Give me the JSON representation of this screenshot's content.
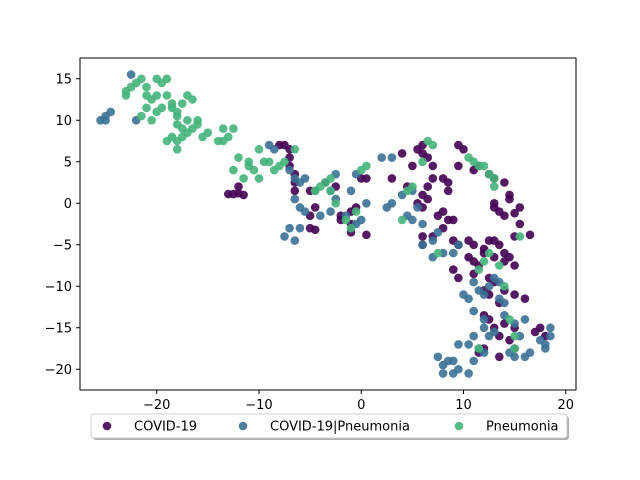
{
  "chart_data": {
    "type": "scatter",
    "title": "",
    "xlabel": "",
    "ylabel": "",
    "xlim": [
      -27.5,
      21
    ],
    "ylim": [
      -22.5,
      17.5
    ],
    "xticks": [
      -20,
      -10,
      0,
      10,
      20
    ],
    "yticks": [
      -20,
      -15,
      -10,
      -5,
      0,
      5,
      10,
      15
    ],
    "grid": false,
    "legend": {
      "placement": "bottom-center",
      "columns": 3
    },
    "series": [
      {
        "name": "COVID-19",
        "color": "#440154",
        "points": [
          [
            -13,
            1.1
          ],
          [
            -12.5,
            1.1
          ],
          [
            -12,
            1.2
          ],
          [
            -11.5,
            1
          ],
          [
            -12,
            2
          ],
          [
            -8,
            7
          ],
          [
            -7.5,
            7
          ],
          [
            -7,
            6.5
          ],
          [
            -7,
            5.5
          ],
          [
            -7,
            4.5
          ],
          [
            -6.5,
            3.5
          ],
          [
            -6.5,
            2.5
          ],
          [
            -6.5,
            1.5
          ],
          [
            -5,
            1.5
          ],
          [
            -4.5,
            -0.5
          ],
          [
            -5,
            -1.5
          ],
          [
            -5,
            -3
          ],
          [
            -4.5,
            -3.2
          ],
          [
            -3.5,
            2.5
          ],
          [
            -2.5,
            2
          ],
          [
            -2,
            -1.5
          ],
          [
            -2,
            -2
          ],
          [
            -1,
            -1
          ],
          [
            -1,
            -2.5
          ],
          [
            -1,
            -3.5
          ],
          [
            -0.5,
            -0.5
          ],
          [
            0,
            3
          ],
          [
            0.5,
            3
          ],
          [
            0.5,
            -3.8
          ],
          [
            3,
            3
          ],
          [
            4,
            6
          ],
          [
            4.5,
            2
          ],
          [
            5,
            4.5
          ],
          [
            5.5,
            6.5
          ],
          [
            6,
            7
          ],
          [
            6,
            6
          ],
          [
            6.5,
            5.5
          ],
          [
            7,
            4.5
          ],
          [
            7,
            3
          ],
          [
            6.5,
            2
          ],
          [
            6,
            1
          ],
          [
            6.5,
            0.5
          ],
          [
            5.5,
            0
          ],
          [
            6,
            -0.5
          ],
          [
            7.5,
            -1.5
          ],
          [
            8,
            -1
          ],
          [
            8.5,
            -2
          ],
          [
            9,
            -2
          ],
          [
            8,
            3
          ],
          [
            8.5,
            1.5
          ],
          [
            8.5,
            2.5
          ],
          [
            9.5,
            4.5
          ],
          [
            9.5,
            7
          ],
          [
            10,
            6.5
          ],
          [
            11,
            4
          ],
          [
            11.5,
            4.5
          ],
          [
            12.5,
            3.5
          ],
          [
            13,
            3
          ],
          [
            14,
            2.5
          ],
          [
            14.5,
            1
          ],
          [
            14.5,
            0.5
          ],
          [
            13,
            0
          ],
          [
            13,
            -0.5
          ],
          [
            13.5,
            -1
          ],
          [
            14,
            -1.5
          ],
          [
            15,
            -1.2
          ],
          [
            15.5,
            -0.5
          ],
          [
            6,
            -4
          ],
          [
            6,
            -5
          ],
          [
            7,
            -4
          ],
          [
            8,
            -3
          ],
          [
            9,
            -4.5
          ],
          [
            9.5,
            -5
          ],
          [
            10.5,
            -4.5
          ],
          [
            11,
            -5
          ],
          [
            12,
            -5.5
          ],
          [
            12.5,
            -4.5
          ],
          [
            13,
            -4.5
          ],
          [
            13.5,
            -5
          ],
          [
            14,
            -6
          ],
          [
            15,
            -4
          ],
          [
            15.5,
            -2.5
          ],
          [
            16.5,
            -3.8
          ],
          [
            10.5,
            -6.5
          ],
          [
            11,
            -7
          ],
          [
            11.5,
            -7.5
          ],
          [
            12,
            -6
          ],
          [
            13,
            -6.5
          ],
          [
            14,
            -7
          ],
          [
            14.5,
            -6.5
          ],
          [
            15,
            -7.5
          ],
          [
            9,
            -8
          ],
          [
            9.5,
            -9
          ],
          [
            11,
            -8.5
          ],
          [
            12.5,
            -9
          ],
          [
            13,
            -9.5
          ],
          [
            14,
            -10.5
          ],
          [
            12,
            -10.5
          ],
          [
            12.5,
            -11
          ],
          [
            13.5,
            -12
          ],
          [
            15,
            -11
          ],
          [
            16,
            -11.5
          ],
          [
            12,
            -13.5
          ],
          [
            12.5,
            -14
          ],
          [
            13,
            -15
          ],
          [
            13.5,
            -16
          ],
          [
            14.5,
            -16.5
          ],
          [
            15,
            -17.5
          ],
          [
            12,
            -17.5
          ],
          [
            11.5,
            -18
          ],
          [
            13.5,
            -18.5
          ],
          [
            17,
            -15.5
          ],
          [
            17.5,
            -15
          ],
          [
            18,
            -16
          ],
          [
            15,
            -15
          ],
          [
            14,
            -14.5
          ]
        ]
      },
      {
        "name": "COVID-19|Pneumonia",
        "color": "#3b7196",
        "points": [
          [
            -25.5,
            10
          ],
          [
            -25,
            10.5
          ],
          [
            -24.5,
            11
          ],
          [
            -25,
            10
          ],
          [
            -22,
            10
          ],
          [
            -22.5,
            15.5
          ],
          [
            -9,
            7
          ],
          [
            -8.5,
            6.5
          ],
          [
            -7,
            4
          ],
          [
            -6.5,
            3
          ],
          [
            -6,
            2.5
          ],
          [
            -5.5,
            3
          ],
          [
            -4.5,
            1.5
          ],
          [
            -6.5,
            0.5
          ],
          [
            -6,
            -0.5
          ],
          [
            -5.5,
            -1
          ],
          [
            -7,
            -3
          ],
          [
            -7.5,
            -4
          ],
          [
            -6.5,
            -4.5
          ],
          [
            -6,
            -3
          ],
          [
            -4,
            -1.5
          ],
          [
            -3,
            -1
          ],
          [
            -2.5,
            3.5
          ],
          [
            -3,
            1.5
          ],
          [
            -2.5,
            0.5
          ],
          [
            -1.5,
            -1.5
          ],
          [
            -1,
            1.5
          ],
          [
            -0.5,
            3.5
          ],
          [
            0,
            -2
          ],
          [
            0.5,
            0
          ],
          [
            -0.5,
            -2.5
          ],
          [
            2,
            5.5
          ],
          [
            3,
            5.5
          ],
          [
            2.5,
            -0.5
          ],
          [
            3,
            0
          ],
          [
            4,
            1
          ],
          [
            5,
            1.5
          ],
          [
            4.5,
            -1.5
          ],
          [
            5,
            -2
          ],
          [
            5.5,
            -0.5
          ],
          [
            6,
            -2.5
          ],
          [
            6,
            -5
          ],
          [
            7,
            -4.5
          ],
          [
            7.5,
            -3.5
          ],
          [
            7,
            -6.5
          ],
          [
            8,
            -6
          ],
          [
            9,
            -6
          ],
          [
            9.5,
            -5
          ],
          [
            10,
            -11
          ],
          [
            10.5,
            -11.5
          ],
          [
            11,
            -9.5
          ],
          [
            11.5,
            -10.5
          ],
          [
            12,
            -11
          ],
          [
            12.5,
            -10
          ],
          [
            13,
            -9
          ],
          [
            13.5,
            -9.5
          ],
          [
            13.5,
            -11.5
          ],
          [
            14,
            -12
          ],
          [
            11,
            -13
          ],
          [
            12,
            -14
          ],
          [
            12,
            -15
          ],
          [
            12.5,
            -16
          ],
          [
            13,
            -15.5
          ],
          [
            14,
            -13.5
          ],
          [
            15,
            -14.5
          ],
          [
            15.5,
            -16
          ],
          [
            16,
            -14
          ],
          [
            11.5,
            -17.5
          ],
          [
            12,
            -18
          ],
          [
            11,
            -19
          ],
          [
            10.5,
            -20.5
          ],
          [
            9.5,
            -20
          ],
          [
            9,
            -19
          ],
          [
            8.5,
            -19
          ],
          [
            8,
            -19.5
          ],
          [
            9.5,
            -17
          ],
          [
            10.5,
            -17
          ],
          [
            11,
            -16
          ],
          [
            7.5,
            -18.5
          ],
          [
            8,
            -20.5
          ],
          [
            9,
            -20.5
          ],
          [
            14.5,
            -18
          ],
          [
            15,
            -18.5
          ],
          [
            16,
            -18.5
          ],
          [
            16.5,
            -18
          ],
          [
            17.5,
            -16.5
          ],
          [
            18,
            -17
          ],
          [
            18.5,
            -16
          ],
          [
            18.5,
            -15
          ],
          [
            18,
            -17.5
          ]
        ]
      },
      {
        "name": "Pneumonia",
        "color": "#44b47a",
        "points": [
          [
            -23,
            13
          ],
          [
            -23,
            13.5
          ],
          [
            -22.5,
            14
          ],
          [
            -22,
            14.5
          ],
          [
            -21.5,
            15
          ],
          [
            -21,
            14
          ],
          [
            -21,
            13
          ],
          [
            -20.5,
            12.5
          ],
          [
            -20,
            13
          ],
          [
            -20,
            15
          ],
          [
            -19.5,
            14.5
          ],
          [
            -19,
            15
          ],
          [
            -19,
            13
          ],
          [
            -18.5,
            12
          ],
          [
            -18.5,
            11.5
          ],
          [
            -18,
            11
          ],
          [
            -18,
            10.5
          ],
          [
            -17.5,
            12
          ],
          [
            -17,
            13
          ],
          [
            -16.5,
            12.5
          ],
          [
            -21.5,
            10.5
          ],
          [
            -21,
            11.5
          ],
          [
            -20.5,
            10
          ],
          [
            -20,
            11
          ],
          [
            -19.5,
            11.5
          ],
          [
            -18,
            9.5
          ],
          [
            -17.5,
            9
          ],
          [
            -17.5,
            8
          ],
          [
            -17,
            8.5
          ],
          [
            -16.5,
            9
          ],
          [
            -16,
            9.5
          ],
          [
            -15.5,
            8
          ],
          [
            -16,
            10
          ],
          [
            -17,
            10
          ],
          [
            -18.5,
            8
          ],
          [
            -18,
            7.5
          ],
          [
            -18,
            6.5
          ],
          [
            -19,
            7.5
          ],
          [
            -15,
            8.5
          ],
          [
            -14,
            7.5
          ],
          [
            -13.5,
            7.5
          ],
          [
            -13.5,
            9
          ],
          [
            -12.5,
            9
          ],
          [
            -13,
            8
          ],
          [
            -12.5,
            4
          ],
          [
            -12,
            5.5
          ],
          [
            -11.5,
            3
          ],
          [
            -11,
            4.5
          ],
          [
            -11,
            5
          ],
          [
            -10.5,
            4
          ],
          [
            -10,
            6.5
          ],
          [
            -10,
            3
          ],
          [
            -9.5,
            5
          ],
          [
            -9,
            5
          ],
          [
            -8.5,
            4
          ],
          [
            -8,
            4.5
          ],
          [
            -7.5,
            5
          ],
          [
            -6.5,
            6.5
          ],
          [
            -4.5,
            1.5
          ],
          [
            -4,
            2
          ],
          [
            -3.5,
            2.5
          ],
          [
            -3,
            3
          ],
          [
            -3,
            1.5
          ],
          [
            -2.5,
            0
          ],
          [
            -1.5,
            -2
          ],
          [
            -1,
            -3
          ],
          [
            -0.5,
            -1
          ],
          [
            0,
            4
          ],
          [
            0.5,
            4.5
          ],
          [
            4,
            -2
          ],
          [
            4.5,
            1.5
          ],
          [
            5,
            2
          ],
          [
            6,
            5
          ],
          [
            6.5,
            7.5
          ],
          [
            7,
            7
          ],
          [
            7.5,
            -6
          ],
          [
            10.5,
            5.5
          ],
          [
            11,
            5
          ],
          [
            11.5,
            4.5
          ],
          [
            12,
            4.5
          ],
          [
            12.5,
            3.5
          ],
          [
            13,
            3
          ],
          [
            13,
            2
          ],
          [
            11.5,
            -8
          ],
          [
            12,
            -7
          ],
          [
            12.5,
            -6
          ],
          [
            13.5,
            -7.5
          ],
          [
            14,
            -10
          ],
          [
            14.5,
            -14
          ],
          [
            15,
            -16
          ],
          [
            15,
            -17.5
          ],
          [
            11.5,
            -17.5
          ],
          [
            15.5,
            -4
          ]
        ]
      }
    ]
  }
}
